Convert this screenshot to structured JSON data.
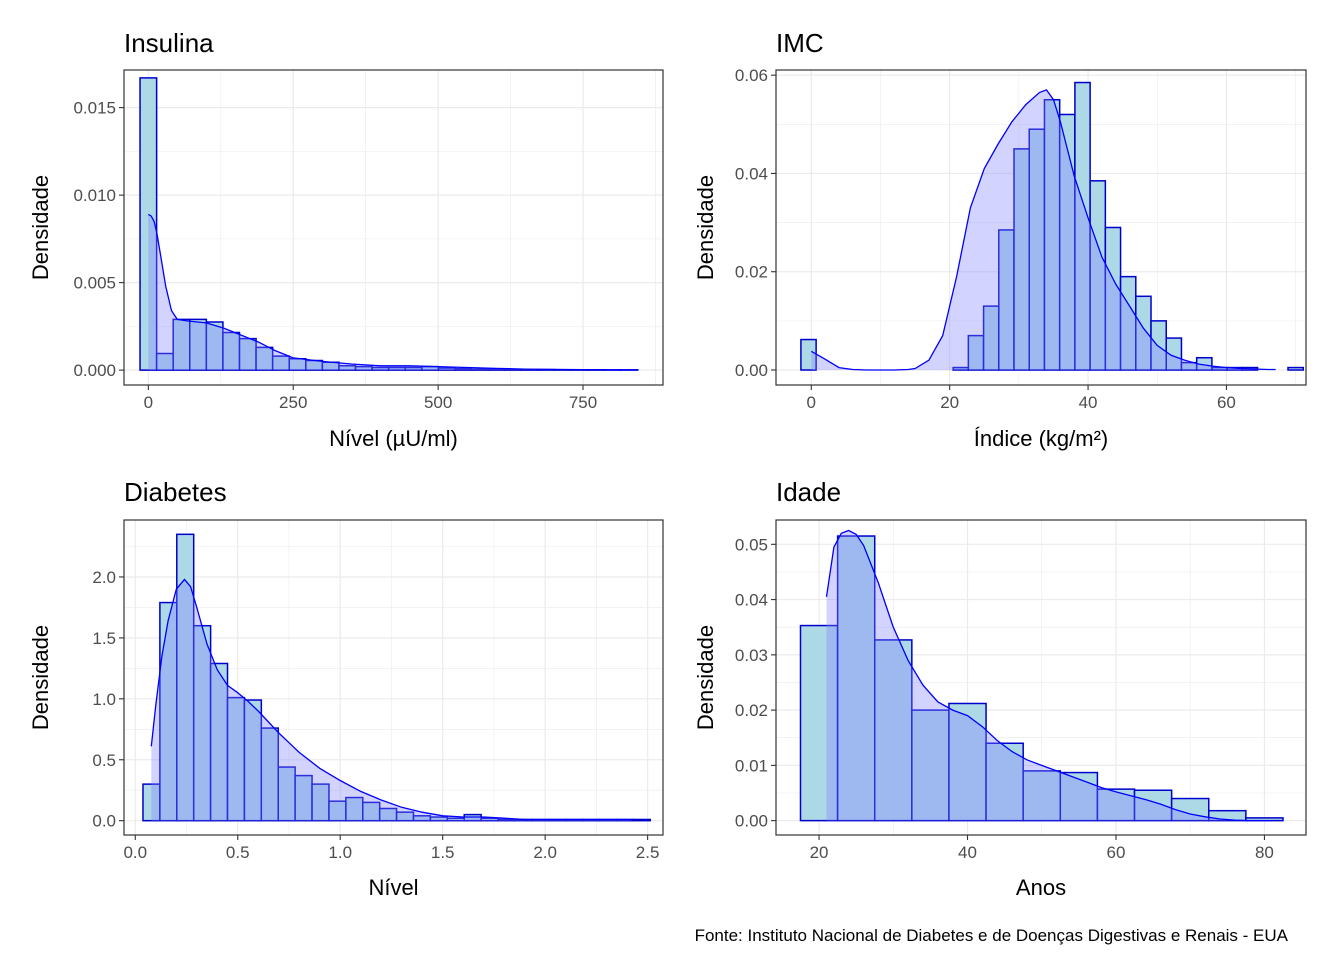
{
  "caption": "Fonte: Instituto Nacional de Diabetes e de Doenças Digestivas e Renais - EUA",
  "colors": {
    "bar_fill": "#add8e6",
    "bar_stroke": "#0000cd",
    "density_line": "#0000ff",
    "density_fill": "#8080ff",
    "grid": "#ebebeb",
    "panel_border": "#333333"
  },
  "chart_data": [
    {
      "type": "bar",
      "title": "Insulina",
      "xlabel": "Nível (µU/ml)",
      "ylabel": "Densidade",
      "xlim": [
        -42,
        888
      ],
      "ylim": [
        -0.00085,
        0.01715
      ],
      "xticks": [
        0,
        250,
        500,
        750
      ],
      "xtick_labels": [
        "0",
        "250",
        "500",
        "750"
      ],
      "yticks": [
        0.0,
        0.005,
        0.01,
        0.015
      ],
      "ytick_labels": [
        "0.000",
        "0.005",
        "0.010",
        "0.015"
      ],
      "grid": true,
      "bins": {
        "start": -14.3,
        "width": 28.6,
        "values": [
          0.0167,
          0.00095,
          0.0029,
          0.0029,
          0.00275,
          0.00215,
          0.0018,
          0.0013,
          0.0008,
          0.00065,
          0.00055,
          0.00045,
          0.00025,
          0.0002,
          0.00015,
          0.00015,
          0.00015,
          0.0002,
          0.00012,
          8e-05,
          5e-05,
          5e-05,
          4e-05,
          3e-05,
          3e-05,
          2e-05,
          2e-05,
          2e-05,
          1e-05,
          1e-05
        ]
      },
      "density": {
        "x": [
          0,
          5,
          10,
          15,
          20,
          30,
          40,
          50,
          70,
          100,
          130,
          160,
          190,
          220,
          250,
          300,
          350,
          400,
          450,
          500,
          550,
          600,
          650,
          700,
          750,
          800,
          846
        ],
        "y": [
          0.0089,
          0.0088,
          0.0085,
          0.0078,
          0.0068,
          0.0048,
          0.0034,
          0.0029,
          0.0028,
          0.0027,
          0.0024,
          0.002,
          0.0016,
          0.0011,
          0.0007,
          0.0005,
          0.00035,
          0.00025,
          0.00025,
          0.0002,
          0.00015,
          0.0001,
          6e-05,
          4e-05,
          3e-05,
          2e-05,
          2e-05
        ]
      }
    },
    {
      "type": "bar",
      "title": "IMC",
      "xlabel": "Índice (kg/m²)",
      "ylabel": "Densidade",
      "xlim": [
        -5.1,
        71.5
      ],
      "ylim": [
        -0.00305,
        0.06105
      ],
      "xticks": [
        0,
        20,
        40,
        60
      ],
      "xtick_labels": [
        "0",
        "20",
        "40",
        "60"
      ],
      "yticks": [
        0.0,
        0.02,
        0.04,
        0.06
      ],
      "ytick_labels": [
        "0.00",
        "0.02",
        "0.04",
        "0.06"
      ],
      "grid": true,
      "bins": {
        "start": -1.5,
        "width": 2.2,
        "values": [
          0.0062,
          0,
          0,
          0,
          0,
          0,
          0,
          0,
          0,
          0,
          0.0005,
          0.007,
          0.013,
          0.0285,
          0.045,
          0.049,
          0.055,
          0.052,
          0.0585,
          0.0385,
          0.029,
          0.019,
          0.015,
          0.01,
          0.0065,
          0.0015,
          0.0025,
          0.0005,
          0.0005,
          0.0005,
          0.0,
          0.0,
          0.0005
        ]
      },
      "density": {
        "x": [
          0,
          2,
          4,
          6,
          8,
          10,
          12,
          14,
          15,
          17,
          19,
          21,
          23,
          25,
          27,
          29,
          31,
          33,
          34,
          35,
          36,
          37,
          38,
          40,
          42,
          44,
          46,
          48,
          50,
          52,
          54,
          56,
          58,
          60,
          62,
          64,
          66,
          67.1
        ],
        "y": [
          0.0038,
          0.0022,
          0.0005,
          0.0001,
          0.0,
          0.0,
          0.0,
          0.0001,
          0.0003,
          0.002,
          0.007,
          0.019,
          0.033,
          0.041,
          0.046,
          0.0505,
          0.054,
          0.0565,
          0.057,
          0.055,
          0.0505,
          0.045,
          0.0395,
          0.031,
          0.023,
          0.0175,
          0.013,
          0.0085,
          0.005,
          0.003,
          0.002,
          0.0012,
          0.0008,
          0.0005,
          0.0003,
          0.0002,
          0.0001,
          0.0001
        ]
      }
    },
    {
      "type": "bar",
      "title": "Diabetes",
      "xlabel": "Nível",
      "ylabel": "Densidade",
      "xlim": [
        -0.055,
        2.575
      ],
      "ylim": [
        -0.1175,
        2.4675
      ],
      "xticks": [
        0.0,
        0.5,
        1.0,
        1.5,
        2.0,
        2.5
      ],
      "xtick_labels": [
        "0.0",
        "0.5",
        "1.0",
        "1.5",
        "2.0",
        "2.5"
      ],
      "yticks": [
        0.0,
        0.5,
        1.0,
        1.5,
        2.0
      ],
      "ytick_labels": [
        "0.0",
        "0.5",
        "1.0",
        "1.5",
        "2.0"
      ],
      "grid": true,
      "bins": {
        "start": 0.0376,
        "width": 0.0825,
        "values": [
          0.3,
          1.79,
          2.35,
          1.6,
          1.29,
          1.01,
          0.99,
          0.76,
          0.44,
          0.37,
          0.3,
          0.16,
          0.19,
          0.15,
          0.1,
          0.07,
          0.04,
          0.03,
          0.02,
          0.05,
          0.02,
          0.01,
          0.01,
          0.01,
          0.01,
          0.01,
          0.01,
          0.01,
          0.01,
          0.01
        ]
      },
      "density": {
        "x": [
          0.078,
          0.1,
          0.13,
          0.16,
          0.2,
          0.24,
          0.27,
          0.3,
          0.35,
          0.4,
          0.45,
          0.5,
          0.55,
          0.6,
          0.65,
          0.7,
          0.75,
          0.8,
          0.9,
          1.0,
          1.1,
          1.2,
          1.3,
          1.4,
          1.5,
          1.6,
          1.7,
          1.8,
          1.9,
          2.0,
          2.2,
          2.42
        ],
        "y": [
          0.61,
          0.95,
          1.35,
          1.64,
          1.9,
          1.98,
          1.92,
          1.75,
          1.45,
          1.24,
          1.11,
          1.05,
          0.98,
          0.9,
          0.81,
          0.72,
          0.64,
          0.56,
          0.43,
          0.33,
          0.24,
          0.17,
          0.11,
          0.07,
          0.04,
          0.03,
          0.03,
          0.02,
          0.01,
          0.01,
          0.01,
          0.01
        ]
      }
    },
    {
      "type": "bar",
      "title": "Idade",
      "xlabel": "Anos",
      "ylabel": "Densidade",
      "xlim": [
        14.2,
        85.6
      ],
      "ylim": [
        -0.0026,
        0.0544
      ],
      "xticks": [
        20,
        40,
        60,
        80
      ],
      "xtick_labels": [
        "20",
        "40",
        "60",
        "80"
      ],
      "yticks": [
        0.0,
        0.01,
        0.02,
        0.03,
        0.04,
        0.05
      ],
      "ytick_labels": [
        "0.00",
        "0.01",
        "0.02",
        "0.03",
        "0.04",
        "0.05"
      ],
      "grid": true,
      "bins": {
        "start": 17.5,
        "width": 5.0,
        "values": [
          0.0353,
          0.0515,
          0.0327,
          0.02,
          0.0212,
          0.014,
          0.009,
          0.0087,
          0.0057,
          0.0055,
          0.004,
          0.0018,
          0.0005
        ]
      },
      "density": {
        "x": [
          21,
          22,
          23,
          24,
          25,
          26,
          28,
          30,
          32,
          34,
          36,
          38,
          40,
          42,
          44,
          46,
          48,
          50,
          52,
          54,
          56,
          58,
          60,
          62,
          64,
          66,
          68,
          70,
          72,
          74,
          76,
          78,
          81
        ],
        "y": [
          0.0405,
          0.0495,
          0.052,
          0.0525,
          0.0518,
          0.0498,
          0.043,
          0.035,
          0.029,
          0.0245,
          0.0215,
          0.02,
          0.019,
          0.017,
          0.0145,
          0.0125,
          0.011,
          0.01,
          0.009,
          0.008,
          0.007,
          0.006,
          0.0052,
          0.0045,
          0.0038,
          0.003,
          0.002,
          0.0012,
          0.0007,
          0.0003,
          0.0001,
          0.0,
          0.0
        ]
      }
    }
  ]
}
